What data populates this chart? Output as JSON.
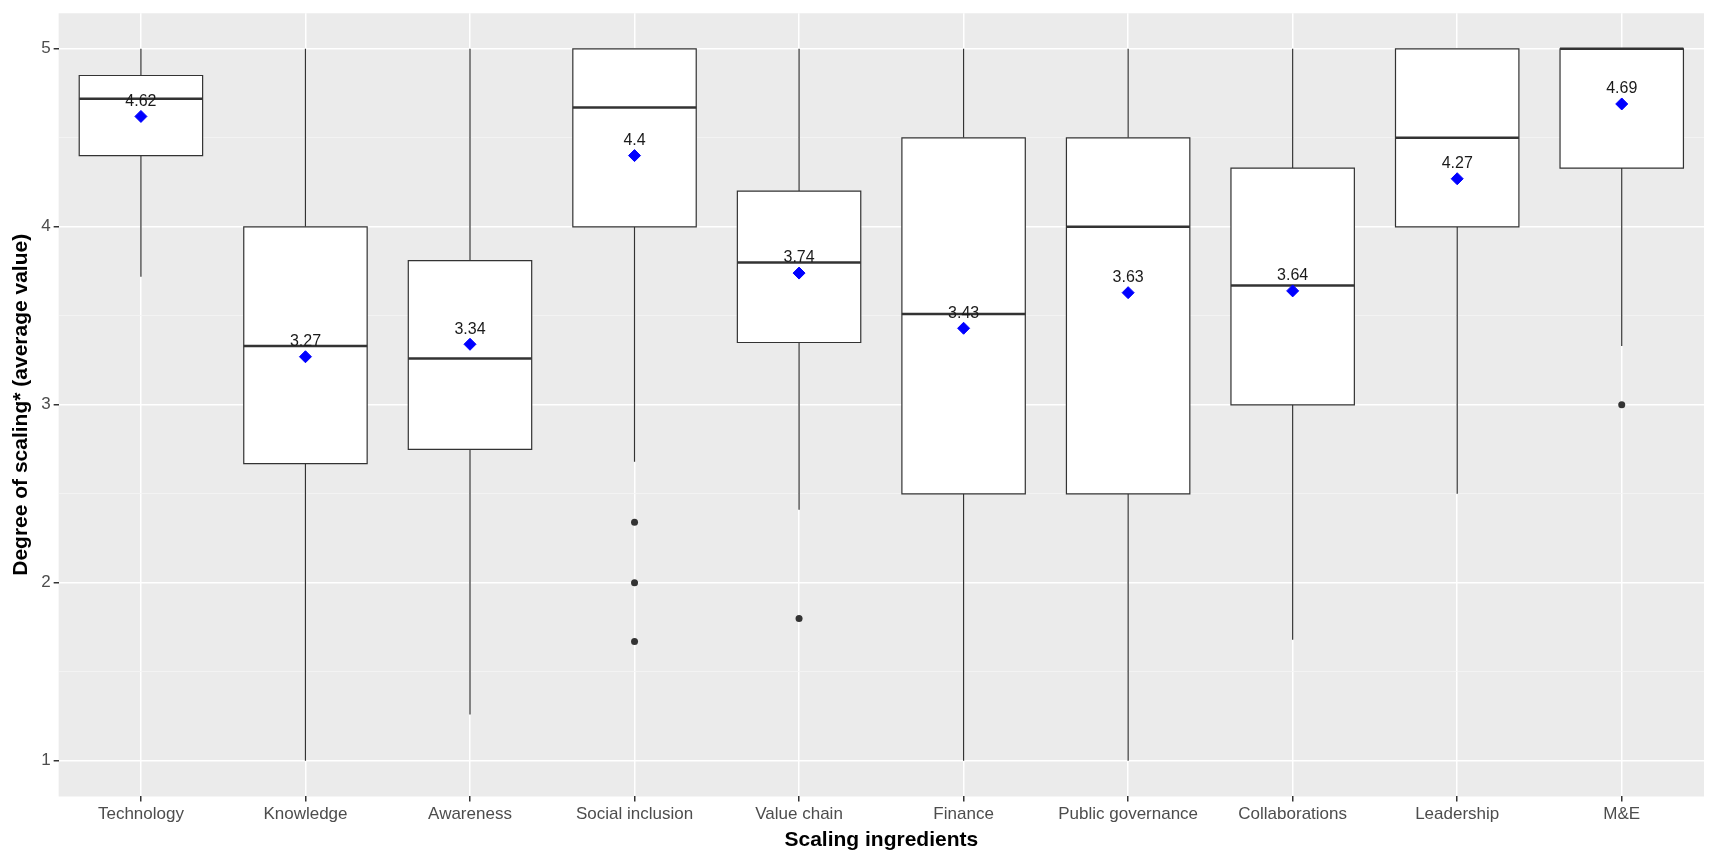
{
  "chart_data": {
    "type": "box",
    "xlabel": "Scaling ingredients",
    "ylabel": "Degree of scaling* (average value)",
    "categories": [
      "Technology",
      "Knowledge",
      "Awareness",
      "Social inclusion",
      "Value chain",
      "Finance",
      "Public governance",
      "Collaborations",
      "Leadership",
      "M&E"
    ],
    "ylim": [
      0.8,
      5.2
    ],
    "yticks": [
      1,
      {
        "value": 1.5,
        "label": null
      },
      2,
      {
        "value": 2.5,
        "label": null
      },
      3,
      {
        "value": 3.5,
        "label": null
      },
      4,
      {
        "value": 4.5,
        "label": null
      },
      5
    ],
    "grid": true,
    "legend": false,
    "data_labels": true,
    "marker": "diamond",
    "series": [
      {
        "type": "box",
        "color": "#ffffff",
        "boxes": [
          {
            "low": 3.72,
            "q1": 4.4,
            "median": 4.72,
            "q3": 4.85,
            "high": 5
          },
          {
            "low": 1,
            "q1": 2.67,
            "median": 3.33,
            "q3": 4,
            "high": 5
          },
          {
            "low": 1.26,
            "q1": 2.75,
            "median": 3.26,
            "q3": 3.81,
            "high": 5
          },
          {
            "low": 2.68,
            "q1": 4,
            "median": 4.67,
            "q3": 5,
            "high": 5,
            "outliers": [
              2.34,
              2,
              1.67
            ]
          },
          {
            "low": 2.41,
            "q1": 3.35,
            "median": 3.8,
            "q3": 4.2,
            "high": 5,
            "outliers": [
              1.8
            ]
          },
          {
            "low": 1,
            "q1": 2.5,
            "median": 3.51,
            "q3": 4.5,
            "high": 5
          },
          {
            "low": 1,
            "q1": 2.5,
            "median": 4,
            "q3": 4.5,
            "high": 5
          },
          {
            "low": 1.68,
            "q1": 3,
            "median": 3.67,
            "q3": 4.33,
            "high": 5
          },
          {
            "low": 2.5,
            "q1": 4,
            "median": 4.5,
            "q3": 5,
            "high": 5
          },
          {
            "low": 3.33,
            "q1": 4.33,
            "median": 5,
            "q3": 5,
            "high": 5,
            "outliers": [
              3
            ]
          }
        ]
      },
      {
        "type": "scatter",
        "color": "#0000ff",
        "x": [
          "Technology",
          "Knowledge",
          "Awareness",
          "Social inclusion",
          "Value chain",
          "Finance",
          "Public governance",
          "Collaborations",
          "Leadership",
          "M&E"
        ],
        "values": [
          4.62,
          3.27,
          3.34,
          4.4,
          3.74,
          3.43,
          3.63,
          3.64,
          4.27,
          4.69
        ]
      }
    ]
  }
}
